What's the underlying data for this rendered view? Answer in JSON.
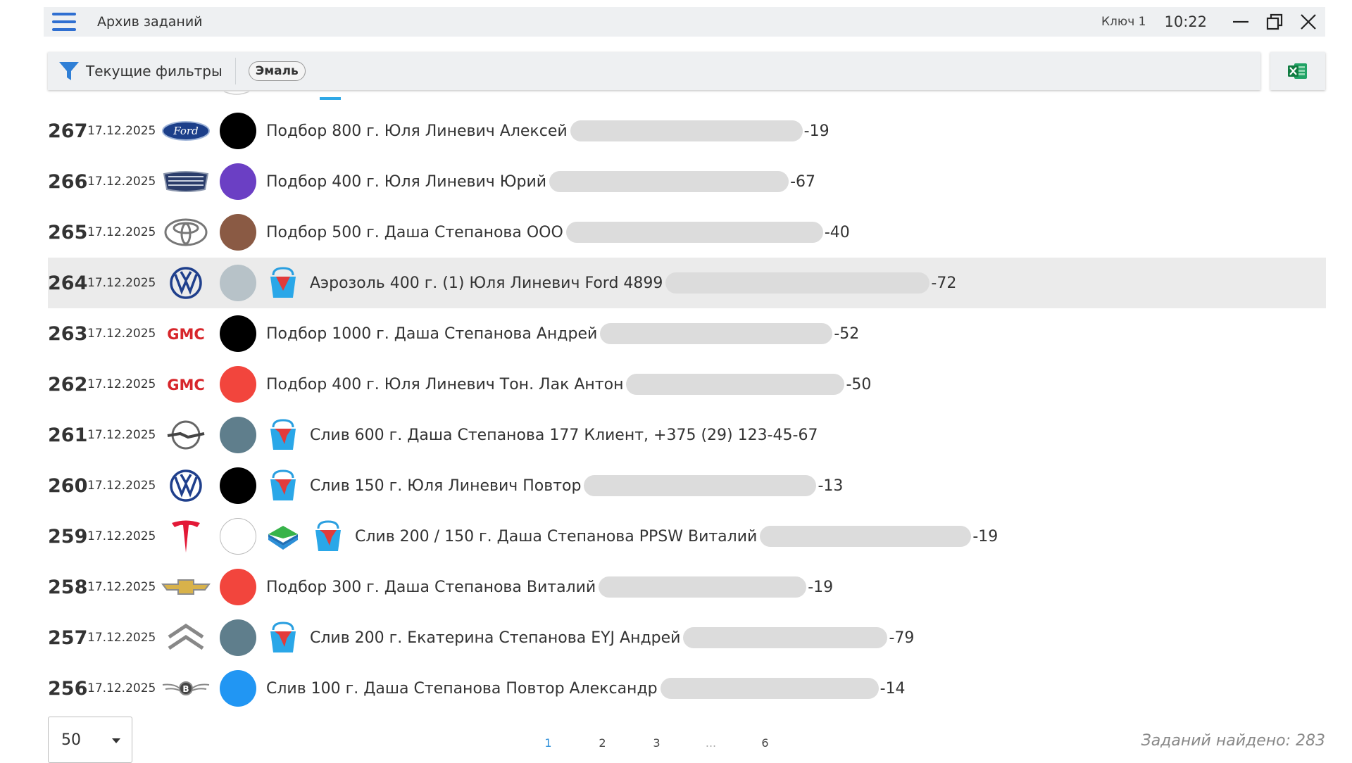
{
  "titlebar": {
    "title": "Архив заданий",
    "key_label": "Ключ 1",
    "time": "10:22"
  },
  "filterbar": {
    "filters_label": "Текущие фильтры",
    "chip": "Эмаль"
  },
  "rows": [
    {
      "num": "267",
      "date": "17.12.2025",
      "brand": "ford-logo",
      "color": "#000000",
      "icons": [],
      "text": "Подбор 800 г. Юля Линевич Алексей",
      "tail": "-19"
    },
    {
      "num": "266",
      "date": "17.12.2025",
      "brand": "geely-logo",
      "color": "#6b3fc4",
      "icons": [],
      "text": "Подбор 400 г. Юля Линевич Юрий",
      "tail": "-67"
    },
    {
      "num": "265",
      "date": "17.12.2025",
      "brand": "toyota-logo",
      "color": "#8a5a44",
      "icons": [],
      "text": "Подбор 500 г. Даша Степанова ООО",
      "tail": "-40"
    },
    {
      "num": "264",
      "date": "17.12.2025",
      "brand": "volkswagen-logo",
      "color": "#b7c2c8",
      "icons": [
        "spray-can"
      ],
      "text": "Аэрозоль 400 г. (1) Юля Линевич Ford 4899",
      "tail": "-72",
      "selected": true
    },
    {
      "num": "263",
      "date": "17.12.2025",
      "brand": "gmc-logo",
      "color": "#000000",
      "icons": [],
      "text": "Подбор 1000 г. Даша Степанова Андрей",
      "tail": "-52"
    },
    {
      "num": "262",
      "date": "17.12.2025",
      "brand": "gmc-logo",
      "color": "#f2453d",
      "icons": [],
      "text": "Подбор 400 г. Юля Линевич Тон. Лак Антон",
      "tail": "-50"
    },
    {
      "num": "261",
      "date": "17.12.2025",
      "brand": "opel-logo",
      "color": "#5f7e8c",
      "icons": [
        "paint-bucket"
      ],
      "text": "Слив 600 г. Даша Степанова 177 Клиент, +375 (29) 123-45-67",
      "tail": ""
    },
    {
      "num": "260",
      "date": "17.12.2025",
      "brand": "volkswagen-logo",
      "color": "#000000",
      "icons": [
        "paint-bucket"
      ],
      "text": "Слив 150 г. Юля Линевич Повтор",
      "tail": "-13"
    },
    {
      "num": "259",
      "date": "17.12.2025",
      "brand": "tesla-logo",
      "color": "#ffffff",
      "icons": [
        "layers",
        "paint-bucket"
      ],
      "text": "Слив 200 / 150 г. Даша Степанова PPSW Виталий",
      "tail": "-19"
    },
    {
      "num": "258",
      "date": "17.12.2025",
      "brand": "chevrolet-logo",
      "color": "#f2453d",
      "icons": [],
      "text": "Подбор 300 г. Даша Степанова Виталий",
      "tail": "-19"
    },
    {
      "num": "257",
      "date": "17.12.2025",
      "brand": "citroen-logo",
      "color": "#5f7e8c",
      "icons": [
        "paint-bucket"
      ],
      "text": "Слив 200 г. Екатерина Степанова EYJ Андрей",
      "tail": "-79"
    },
    {
      "num": "256",
      "date": "17.12.2025",
      "brand": "bentley-logo",
      "color": "#2196f3",
      "icons": [],
      "text": "Слив 100 г. Даша Степанова Повтор  Александр",
      "tail": "-14"
    }
  ],
  "footer": {
    "page_size": "50",
    "pages": [
      "1",
      "2",
      "3",
      "...",
      "6"
    ],
    "active_page": "1",
    "found": "Заданий найдено: 283"
  }
}
